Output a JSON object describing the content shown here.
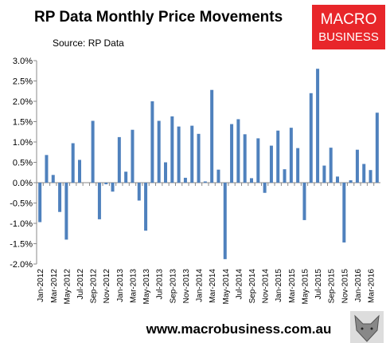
{
  "chart_data": {
    "type": "bar",
    "title": "RP Data Monthly Price Movements",
    "subtitle": "Source: RP Data",
    "categories": [
      "Jan-2012",
      null,
      "Mar-2012",
      null,
      "May-2012",
      null,
      "Jul-2012",
      null,
      "Sep-2012",
      null,
      "Nov-2012",
      null,
      "Jan-2013",
      null,
      "Mar-2013",
      null,
      "May-2013",
      null,
      "Jul-2013",
      null,
      "Sep-2013",
      null,
      "Nov-2013",
      null,
      "Jan-2014",
      null,
      "Mar-2014",
      null,
      "May-2014",
      null,
      "Jul-2014",
      null,
      "Sep-2014",
      null,
      "Nov-2014",
      null,
      "Jan-2015",
      null,
      "Mar-2015",
      null,
      "May-2015",
      null,
      "Jul-2015",
      null,
      "Sep-2015",
      null,
      "Nov-2015",
      null,
      "Jan-2016",
      null,
      "Mar-2016",
      null
    ],
    "values": [
      -0.97,
      0.68,
      0.19,
      -0.72,
      -1.4,
      0.97,
      0.56,
      0.0,
      1.52,
      -0.9,
      -0.04,
      -0.22,
      1.12,
      0.27,
      1.3,
      -0.44,
      -1.18,
      2.0,
      1.52,
      0.5,
      1.63,
      1.38,
      0.12,
      1.4,
      1.2,
      0.03,
      2.28,
      0.32,
      -1.88,
      1.44,
      1.56,
      1.19,
      0.11,
      1.09,
      -0.25,
      0.91,
      1.28,
      0.33,
      1.35,
      0.85,
      -0.92,
      2.2,
      2.8,
      0.42,
      0.86,
      0.15,
      -1.47,
      0.06,
      0.81,
      0.46,
      0.31,
      1.72
    ],
    "color": "#4f81bd",
    "ylim": [
      -2.0,
      3.0
    ],
    "yticks": [
      {
        "value": -2.0,
        "label": "-2.0%"
      },
      {
        "value": -1.5,
        "label": "-1.5%"
      },
      {
        "value": -1.0,
        "label": "-1.0%"
      },
      {
        "value": -0.5,
        "label": "-0.5%"
      },
      {
        "value": 0.0,
        "label": "0.0%"
      },
      {
        "value": 0.5,
        "label": "0.5%"
      },
      {
        "value": 1.0,
        "label": "1.0%"
      },
      {
        "value": 1.5,
        "label": "1.5%"
      },
      {
        "value": 2.0,
        "label": "2.0%"
      },
      {
        "value": 2.5,
        "label": "2.5%"
      },
      {
        "value": 3.0,
        "label": "3.0%"
      }
    ],
    "grid": false
  },
  "logo": {
    "line1": "MACRO",
    "line2": "BUSINESS"
  },
  "footer": "www.macrobusiness.com.au"
}
